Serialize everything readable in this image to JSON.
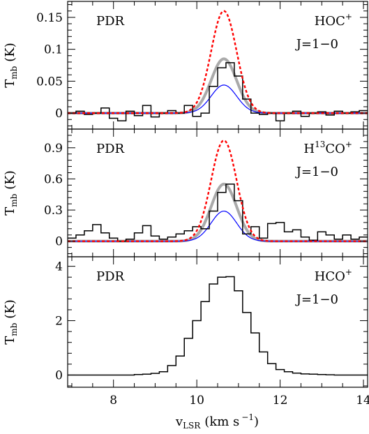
{
  "chart_data": [
    {
      "type": "line",
      "panel": "HOC+",
      "annotation_left": "PDR",
      "species": "HOC",
      "species_sup": "+",
      "transition": "J=1−0",
      "ylabel_main": "T",
      "ylabel_sub": "mb",
      "ylabel_unit": "(K)",
      "xlim": [
        6.9,
        14.1
      ],
      "ylim": [
        -0.025,
        0.175
      ],
      "yticks": [
        0,
        0.05,
        0.1,
        0.15
      ],
      "ytick_labels": [
        "0",
        "0.05",
        "0.1",
        "0.15"
      ],
      "grid": false,
      "series": [
        {
          "role": "observed spectrum (histogram)",
          "style": "step",
          "color": "#000000",
          "step_x": [
            6.9,
            7.1,
            7.3,
            7.5,
            7.7,
            7.9,
            8.1,
            8.3,
            8.5,
            8.7,
            8.9,
            9.1,
            9.3,
            9.5,
            9.7,
            9.9,
            10.1,
            10.3,
            10.5,
            10.7,
            10.9,
            11.1,
            11.3,
            11.5,
            11.7,
            11.9,
            12.1,
            12.3,
            12.5,
            12.7,
            12.9,
            13.1,
            13.3,
            13.5,
            13.7,
            13.9,
            14.1
          ],
          "values": [
            0.0,
            0.003,
            -0.002,
            0.0,
            0.008,
            -0.008,
            -0.012,
            0.003,
            -0.004,
            0.012,
            -0.006,
            0.0,
            0.004,
            0.0,
            0.012,
            -0.005,
            0.0,
            0.042,
            0.071,
            0.079,
            0.058,
            0.022,
            0.0,
            -0.002,
            0.0,
            -0.012,
            0.0,
            0.003,
            -0.005,
            0.0,
            0.002,
            -0.003,
            0.003,
            0.0,
            0.002,
            0.004
          ]
        },
        {
          "role": "total model",
          "style": "gaussian",
          "color": "#aaaaaa",
          "center": 10.65,
          "fwhm": 0.72,
          "peak": 0.085,
          "baseline": 0.0
        },
        {
          "role": "model component",
          "style": "gaussian",
          "color": "#0000ff",
          "center": 10.65,
          "fwhm": 0.72,
          "peak": 0.044,
          "baseline": 0.0
        },
        {
          "role": "model prediction",
          "style": "gaussian-dashed",
          "color": "#ff0000",
          "center": 10.65,
          "fwhm": 0.72,
          "peak": 0.16,
          "baseline": 0.0
        }
      ]
    },
    {
      "type": "line",
      "panel": "H13CO+",
      "annotation_left": "PDR",
      "species": "H",
      "species_iso": "13",
      "species_rest": "CO",
      "species_sup": "+",
      "transition": "J=1−0",
      "ylabel_main": "T",
      "ylabel_sub": "mb",
      "ylabel_unit": "(K)",
      "xlim": [
        6.9,
        14.1
      ],
      "ylim": [
        -0.15,
        1.08
      ],
      "yticks": [
        0,
        0.3,
        0.6,
        0.9
      ],
      "ytick_labels": [
        "0",
        "0.3",
        "0.6",
        "0.9"
      ],
      "grid": false,
      "series": [
        {
          "role": "observed spectrum (histogram)",
          "style": "step",
          "color": "#000000",
          "step_x": [
            6.9,
            7.1,
            7.3,
            7.5,
            7.7,
            7.9,
            8.1,
            8.3,
            8.5,
            8.7,
            8.9,
            9.1,
            9.3,
            9.5,
            9.7,
            9.9,
            10.1,
            10.3,
            10.5,
            10.7,
            10.9,
            11.1,
            11.3,
            11.5,
            11.7,
            11.9,
            12.1,
            12.3,
            12.5,
            12.7,
            12.9,
            13.1,
            13.3,
            13.5,
            13.7,
            13.9,
            14.1
          ],
          "values": [
            0.03,
            0.06,
            0.1,
            0.16,
            0.08,
            0.03,
            0.0,
            0.02,
            0.08,
            0.15,
            0.05,
            0.02,
            0.04,
            0.07,
            0.1,
            0.14,
            0.12,
            0.29,
            0.47,
            0.55,
            0.39,
            0.07,
            0.14,
            0.03,
            0.17,
            0.18,
            0.09,
            0.11,
            0.04,
            0.01,
            0.09,
            0.06,
            0.02,
            0.06,
            0.02,
            0.04
          ]
        },
        {
          "role": "total model",
          "style": "gaussian",
          "color": "#aaaaaa",
          "center": 10.65,
          "fwhm": 0.72,
          "peak": 0.55,
          "baseline": 0.0
        },
        {
          "role": "model component",
          "style": "gaussian",
          "color": "#0000ff",
          "center": 10.65,
          "fwhm": 0.72,
          "peak": 0.29,
          "baseline": 0.0
        },
        {
          "role": "model prediction",
          "style": "gaussian-dashed",
          "color": "#ff0000",
          "center": 10.65,
          "fwhm": 0.72,
          "peak": 0.97,
          "baseline": 0.0
        }
      ]
    },
    {
      "type": "line",
      "panel": "HCO+",
      "annotation_left": "PDR",
      "species": "HCO",
      "species_sup": "+",
      "transition": "J=1−0",
      "ylabel_main": "T",
      "ylabel_sub": "mb",
      "ylabel_unit": "(K)",
      "xlabel_main": "v",
      "xlabel_sub": "LSR",
      "xlabel_unit": "(km s",
      "xlabel_exp": "−1",
      "xlabel_close": ")",
      "xlim": [
        6.9,
        14.1
      ],
      "ylim": [
        -0.45,
        4.35
      ],
      "xticks": [
        8,
        10,
        12,
        14
      ],
      "xtick_labels": [
        "8",
        "10",
        "12",
        "14"
      ],
      "yticks": [
        0,
        2,
        4
      ],
      "ytick_labels": [
        "0",
        "2",
        "4"
      ],
      "grid": false,
      "series": [
        {
          "role": "observed spectrum (histogram)",
          "style": "step",
          "color": "#000000",
          "step_x": [
            6.9,
            7.1,
            7.3,
            7.5,
            7.7,
            7.9,
            8.1,
            8.3,
            8.5,
            8.7,
            8.9,
            9.1,
            9.3,
            9.5,
            9.7,
            9.9,
            10.1,
            10.3,
            10.5,
            10.7,
            10.9,
            11.1,
            11.3,
            11.5,
            11.7,
            11.9,
            12.1,
            12.3,
            12.5,
            12.7,
            12.9,
            13.1,
            13.3,
            13.5,
            13.7,
            13.9,
            14.1
          ],
          "values": [
            0.0,
            0.0,
            0.0,
            0.0,
            0.0,
            0.0,
            0.0,
            0.0,
            0.02,
            0.03,
            0.06,
            0.12,
            0.35,
            0.7,
            1.35,
            2.0,
            2.7,
            3.35,
            3.6,
            3.62,
            3.1,
            2.3,
            1.55,
            0.85,
            0.42,
            0.2,
            0.12,
            0.07,
            0.04,
            0.03,
            0.02,
            0.01,
            0.0,
            0.0,
            0.0,
            0.0
          ]
        }
      ]
    }
  ]
}
